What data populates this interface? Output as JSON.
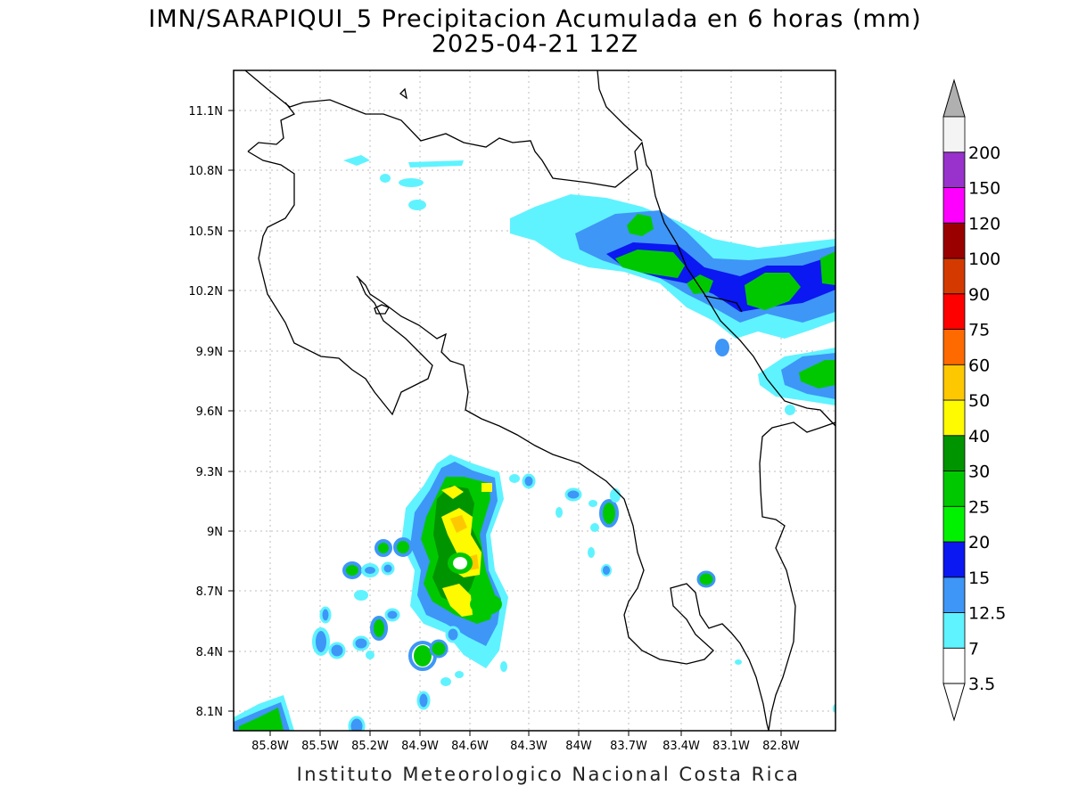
{
  "title": "IMN/SARAPIQUI_5 Precipitacion Acumulada en 6 horas (mm)",
  "subtitle": "2025-04-21 12Z",
  "footer": "Instituto Meteorologico Nacional Costa Rica",
  "axes": {
    "lat_labels": [
      "11.1N",
      "10.8N",
      "10.5N",
      "10.2N",
      "9.9N",
      "9.6N",
      "9.3N",
      "9N",
      "8.7N",
      "8.4N",
      "8.1N"
    ],
    "lon_labels": [
      "85.8W",
      "85.5W",
      "85.2W",
      "84.9W",
      "84.6W",
      "84.3W",
      "84W",
      "83.7W",
      "83.4W",
      "83.1W",
      "82.8W"
    ],
    "grid": true
  },
  "colorbar": {
    "levels": [
      "3.5",
      "7",
      "12.5",
      "15",
      "20",
      "25",
      "30",
      "40",
      "50",
      "60",
      "75",
      "90",
      "100",
      "120",
      "150",
      "200"
    ],
    "colors": [
      "#ffffff",
      "#5ff3ff",
      "#3e96f7",
      "#0b18f1",
      "#00f200",
      "#00c800",
      "#009400",
      "#fefa00",
      "#fec800",
      "#ff6a00",
      "#fe0000",
      "#d43a00",
      "#9a0000",
      "#fe00fe",
      "#9932cc",
      "#f4f4f4"
    ],
    "over_color": "#b0b0b0"
  },
  "legend_unit": "mm"
}
